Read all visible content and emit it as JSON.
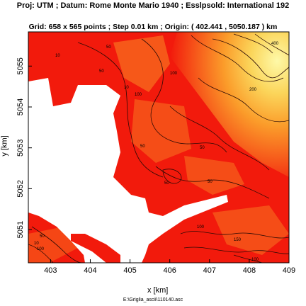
{
  "header": {
    "projection_line": "Proj: UTM ; Datum: Rome Monte Mario 1940 ; Esslpsold: International 192",
    "grid_line": "Grid: 658 x 565 points ; Step 0.01 km ; Origin: ( 402.441 , 5050.187 ) km"
  },
  "axes": {
    "xlabel": "x [km]",
    "ylabel": "y [km]",
    "x_ticks": [
      "403",
      "404",
      "405",
      "406",
      "407",
      "408",
      "409"
    ],
    "y_ticks": [
      "5051",
      "5052",
      "5053",
      "5054",
      "5055"
    ],
    "x_range": [
      402.441,
      409.0
    ],
    "y_range": [
      5050.187,
      5055.837
    ]
  },
  "contour_labels": [
    "10",
    "50",
    "100",
    "200",
    "400",
    "50",
    "10",
    "100",
    "50",
    "50",
    "50",
    "50",
    "100",
    "150",
    "10",
    "50",
    "100",
    "100"
  ],
  "colors": {
    "low": "#f21a0c",
    "mid": "#f7641c",
    "high": "#fbb43a",
    "peak": "#fef9a8",
    "sea": "#ffffff"
  },
  "footer": {
    "file_path": "E:\\Griglia_ascii\\110140.asc"
  }
}
